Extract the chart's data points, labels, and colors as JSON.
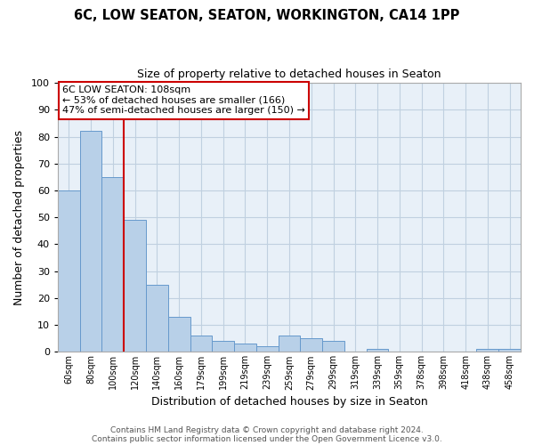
{
  "title": "6C, LOW SEATON, SEATON, WORKINGTON, CA14 1PP",
  "subtitle": "Size of property relative to detached houses in Seaton",
  "xlabel": "Distribution of detached houses by size in Seaton",
  "ylabel": "Number of detached properties",
  "bar_labels": [
    "60sqm",
    "80sqm",
    "100sqm",
    "120sqm",
    "140sqm",
    "160sqm",
    "179sqm",
    "199sqm",
    "219sqm",
    "239sqm",
    "259sqm",
    "279sqm",
    "299sqm",
    "319sqm",
    "339sqm",
    "359sqm",
    "378sqm",
    "398sqm",
    "418sqm",
    "438sqm",
    "458sqm"
  ],
  "bar_values": [
    60,
    82,
    65,
    49,
    25,
    13,
    6,
    4,
    3,
    2,
    6,
    5,
    4,
    0,
    1,
    0,
    0,
    0,
    0,
    1,
    1
  ],
  "bar_color": "#b8d0e8",
  "bar_edge_color": "#6699cc",
  "grid_color": "#c0d0e0",
  "background_color": "#e8f0f8",
  "vline_color": "#cc0000",
  "annotation_title": "6C LOW SEATON: 108sqm",
  "annotation_line1": "← 53% of detached houses are smaller (166)",
  "annotation_line2": "47% of semi-detached houses are larger (150) →",
  "annotation_box_color": "#cc0000",
  "ylim": [
    0,
    100
  ],
  "yticks": [
    0,
    10,
    20,
    30,
    40,
    50,
    60,
    70,
    80,
    90,
    100
  ],
  "footer1": "Contains HM Land Registry data © Crown copyright and database right 2024.",
  "footer2": "Contains public sector information licensed under the Open Government Licence v3.0."
}
